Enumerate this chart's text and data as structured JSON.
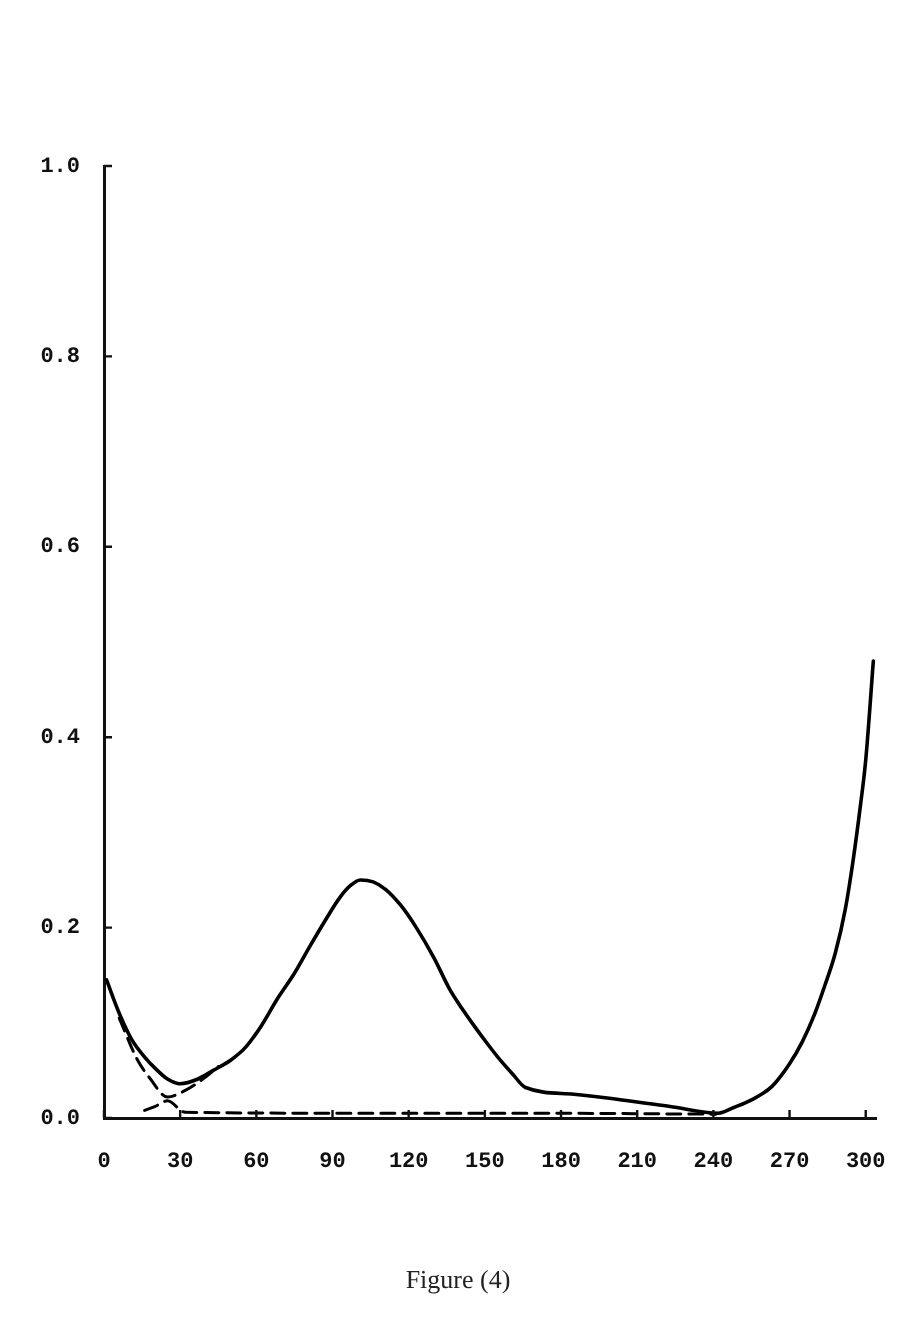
{
  "chart_data": {
    "type": "line",
    "xlim": [
      0,
      304
    ],
    "xticks": [
      0,
      30,
      60,
      90,
      120,
      150,
      180,
      210,
      240,
      270,
      300
    ],
    "ylim": [
      0,
      1
    ],
    "yticks": [
      {
        "value": 0,
        "label": "0.0"
      },
      0.2,
      0.4,
      0.6,
      0.8,
      {
        "value": 1,
        "label": "1.0"
      }
    ],
    "grid": false,
    "legend": false,
    "marker": "none",
    "annotations": [
      "Figure (4)"
    ],
    "series": [
      {
        "color": "#000000",
        "line_style": "solid",
        "x": [
          1,
          6,
          11,
          16,
          21,
          25,
          30,
          37,
          43,
          50,
          56,
          62,
          68,
          75,
          81,
          87,
          93,
          97,
          101,
          106,
          111,
          117,
          123,
          130,
          136,
          141,
          146,
          151,
          156,
          161,
          166,
          185,
          204,
          223,
          242,
          248,
          255,
          263,
          270,
          275,
          280,
          284,
          288,
          292,
          295,
          298,
          300,
          303
        ],
        "values": [
          0.145,
          0.11,
          0.082,
          0.064,
          0.05,
          0.041,
          0.036,
          0.041,
          0.05,
          0.061,
          0.075,
          0.097,
          0.124,
          0.152,
          0.18,
          0.207,
          0.232,
          0.244,
          0.25,
          0.248,
          0.24,
          0.223,
          0.2,
          0.168,
          0.136,
          0.115,
          0.096,
          0.078,
          0.061,
          0.046,
          0.032,
          0.025,
          0.019,
          0.012,
          0.005,
          0.011,
          0.019,
          0.033,
          0.057,
          0.08,
          0.11,
          0.14,
          0.173,
          0.22,
          0.27,
          0.33,
          0.376,
          0.48
        ]
      },
      {
        "color": "#000000",
        "line_style": "dashed",
        "x": [
          6,
          13,
          18,
          25,
          32,
          40,
          45
        ],
        "values": [
          0.105,
          0.062,
          0.042,
          0.022,
          0.029,
          0.043,
          0.054
        ]
      },
      {
        "color": "#000000",
        "line_style": "dashed",
        "x": [
          16,
          20,
          25,
          32,
          100,
          170,
          241
        ],
        "values": [
          0.008,
          0.012,
          0.018,
          0.006,
          0.005,
          0.005,
          0.004
        ]
      }
    ]
  }
}
